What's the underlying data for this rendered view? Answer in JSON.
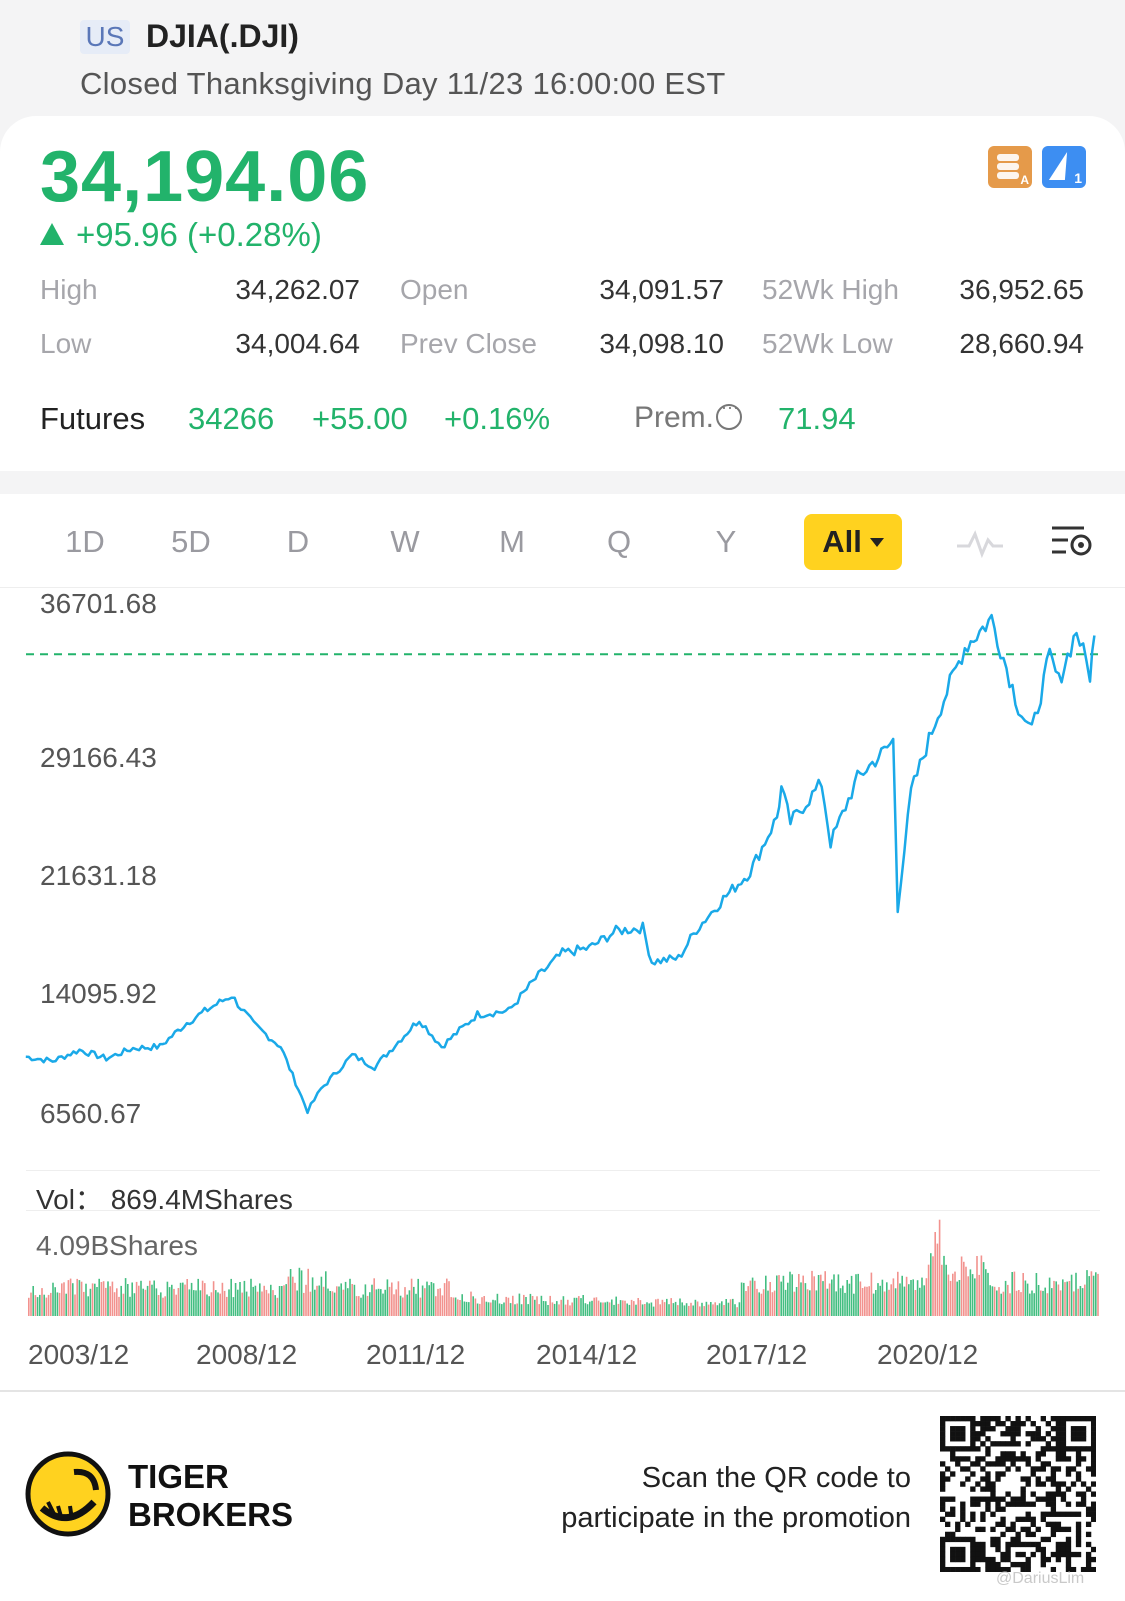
{
  "header": {
    "market_badge": "US",
    "symbol": "DJIA(.DJI)",
    "status": "Closed Thanksgiving Day 11/23 16:00:00 EST"
  },
  "quote": {
    "price": "34,194.06",
    "change": "+95.96 (+0.28%)",
    "icon_a": "layers-a-icon",
    "icon_a_sub": "A",
    "icon_b": "lightning-icon",
    "icon_b_sub": "1",
    "stats": [
      {
        "label": "High",
        "value": "34,262.07"
      },
      {
        "label": "Open",
        "value": "34,091.57"
      },
      {
        "label": "52Wk High",
        "value": "36,952.65"
      },
      {
        "label": "Low",
        "value": "34,004.64"
      },
      {
        "label": "Prev Close",
        "value": "34,098.10"
      },
      {
        "label": "52Wk Low",
        "value": "28,660.94"
      }
    ]
  },
  "futures": {
    "label": "Futures",
    "value": "34266",
    "change": "+55.00",
    "percent": "+0.16%",
    "prem_label": "Prem.",
    "prem_value": "71.94"
  },
  "tabs": [
    "1D",
    "5D",
    "D",
    "W",
    "M",
    "Q",
    "Y",
    "All"
  ],
  "tab_active": "All",
  "colors": {
    "up": "#22b36b",
    "line": "#1aa9e8",
    "down": "#f07f7a",
    "accent": "#ffd21f"
  },
  "chart_data": {
    "type": "line",
    "yticks": [
      "36701.68",
      "29166.43",
      "21631.18",
      "14095.92",
      "6560.67"
    ],
    "xticks": [
      "2003/12",
      "2008/12",
      "2011/12",
      "2014/12",
      "2017/12",
      "2020/12"
    ],
    "reference_line": 34098.1,
    "series": [
      {
        "x": [
          "2003/12",
          "2004/06",
          "2004/12",
          "2005/06",
          "2005/12",
          "2006/06",
          "2006/12",
          "2007/06",
          "2007/10",
          "2008/03",
          "2008/09",
          "2009/03",
          "2009/06",
          "2010/01",
          "2010/06",
          "2011/04",
          "2011/09",
          "2012/05",
          "2012/12",
          "2013/06",
          "2013/12",
          "2014/06",
          "2014/12",
          "2015/06",
          "2015/08",
          "2016/02",
          "2016/06",
          "2016/12",
          "2017/06",
          "2017/12",
          "2018/01",
          "2018/03",
          "2018/10",
          "2018/12",
          "2019/06",
          "2019/12",
          "2020/02",
          "2020/03",
          "2020/06",
          "2020/12",
          "2021/06",
          "2021/12",
          "2022/06",
          "2022/09",
          "2023/01",
          "2023/03",
          "2023/07",
          "2023/10",
          "2023/11"
        ],
        "y": [
          10400,
          10150,
          10800,
          10300,
          10900,
          11000,
          12400,
          13400,
          14000,
          12300,
          11000,
          7200,
          8500,
          10500,
          9800,
          12600,
          11000,
          12900,
          13100,
          15000,
          16500,
          16800,
          17800,
          18000,
          16000,
          16200,
          17900,
          19700,
          21300,
          24500,
          26200,
          24200,
          26500,
          23000,
          26800,
          28400,
          29000,
          19200,
          26000,
          30600,
          34500,
          36200,
          31000,
          29500,
          34000,
          32500,
          35500,
          32900,
          35200
        ]
      }
    ],
    "vol_max": "4.09BShares",
    "vol_current": "869.4MShares",
    "vol_label": "Vol："
  },
  "footer": {
    "brand_line1": "TIGER",
    "brand_line2": "BROKERS",
    "promo_line1": "Scan the QR code to",
    "promo_line2": "participate in the promotion",
    "watermark": "@DariusLim"
  }
}
